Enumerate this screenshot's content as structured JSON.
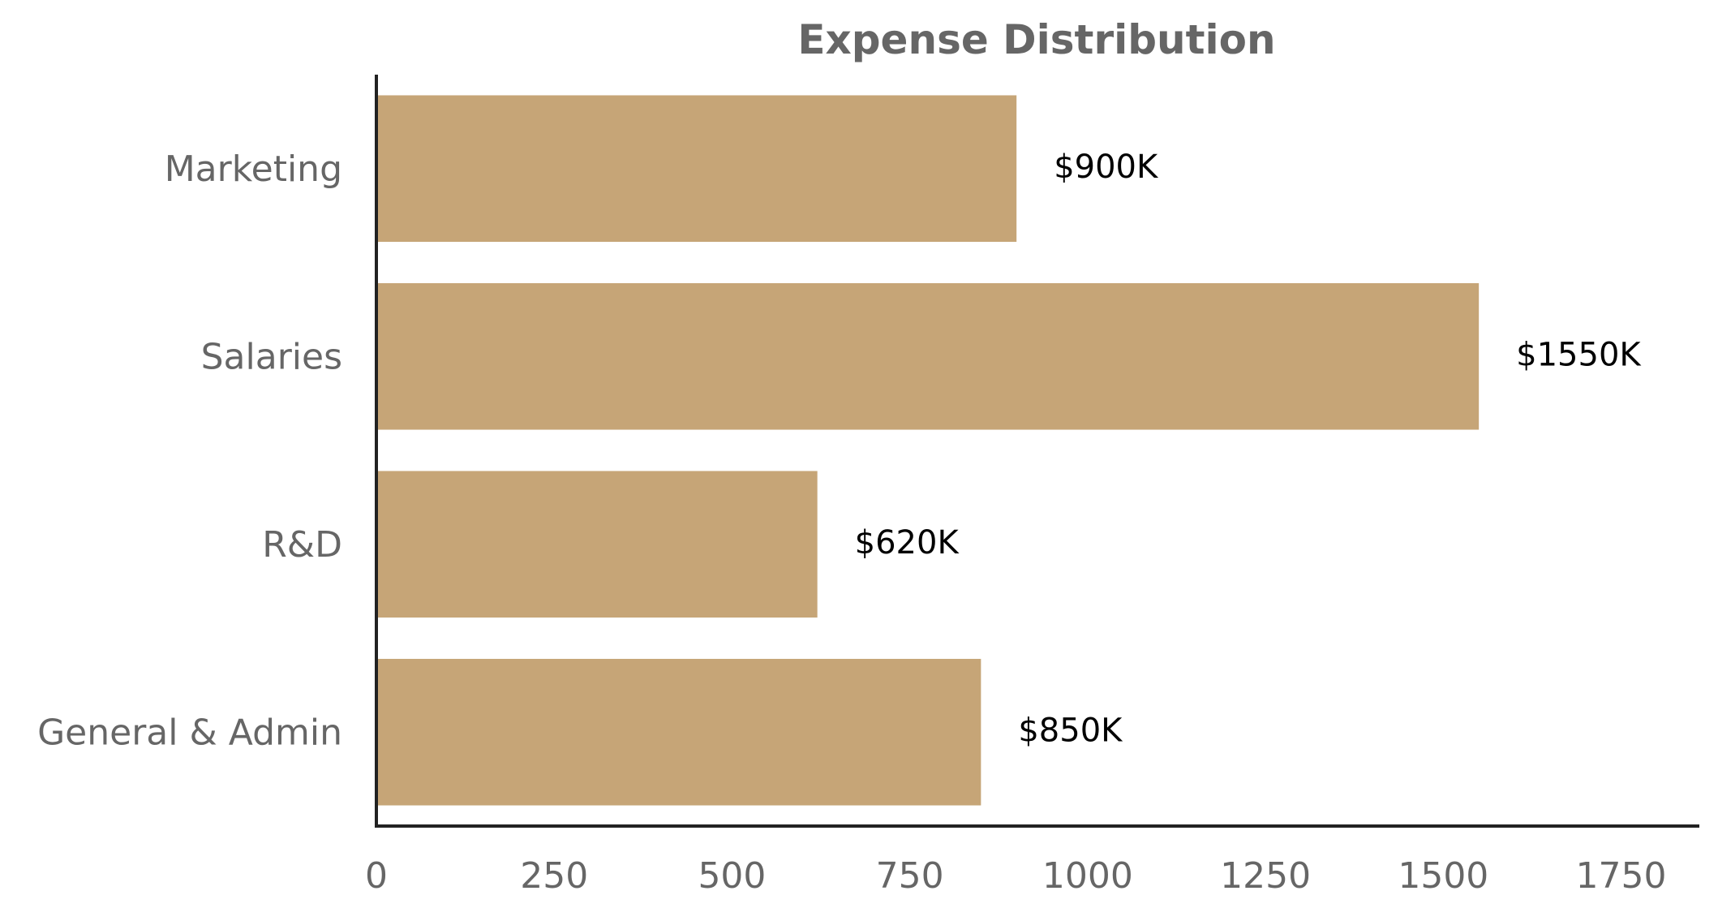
{
  "chart_data": {
    "type": "bar",
    "orientation": "horizontal",
    "title": "Expense Distribution",
    "xlabel": "",
    "ylabel": "",
    "categories": [
      "Marketing",
      "Salaries",
      "R&D",
      "General & Admin"
    ],
    "values": [
      900,
      1550,
      620,
      850
    ],
    "data_labels": [
      "$900K",
      "$1550K",
      "$620K",
      "$850K"
    ],
    "xlim": [
      0,
      1860
    ],
    "xticks": [
      0,
      250,
      500,
      750,
      1000,
      1250,
      1500,
      1750
    ],
    "xtick_labels": [
      "0",
      "250",
      "500",
      "750",
      "1000",
      "1250",
      "1500",
      "1750"
    ],
    "grid": false,
    "legend": "none"
  },
  "colors": {
    "bar": "#c6a577",
    "axis": "#222222",
    "title": "#666666",
    "tick_text": "#666666",
    "data_label": "#000000"
  }
}
